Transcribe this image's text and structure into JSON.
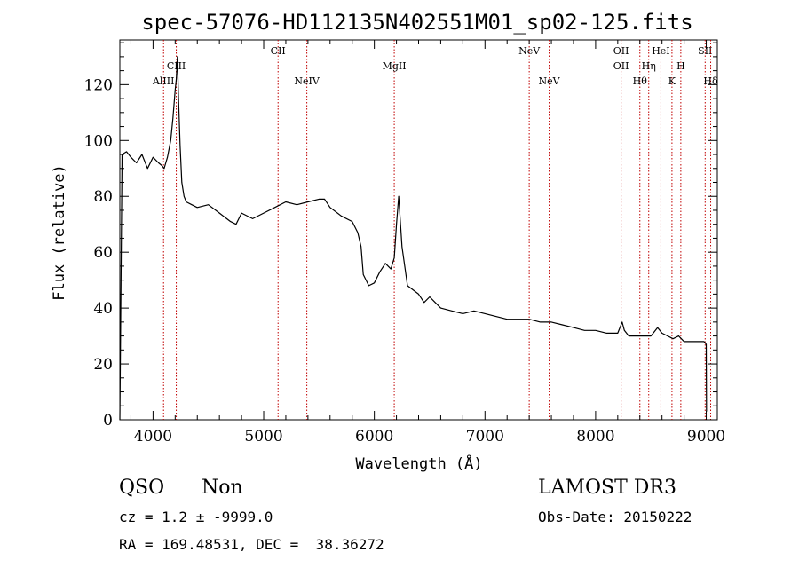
{
  "chart_data": {
    "type": "line",
    "title": "spec-57076-HD112135N402551M01_sp02-125.fits",
    "xlabel": "Wavelength (Å)",
    "ylabel": "Flux (relative)",
    "xlim": [
      3700,
      9100
    ],
    "ylim": [
      0,
      136
    ],
    "xticks": [
      4000,
      5000,
      6000,
      7000,
      8000,
      9000
    ],
    "yticks": [
      0,
      20,
      40,
      60,
      80,
      100,
      120
    ],
    "series": [
      {
        "name": "flux",
        "x": [
          3700,
          3720,
          3760,
          3800,
          3850,
          3900,
          3950,
          4000,
          4050,
          4080,
          4100,
          4130,
          4160,
          4180,
          4200,
          4210,
          4220,
          4230,
          4245,
          4260,
          4280,
          4300,
          4350,
          4400,
          4500,
          4600,
          4700,
          4750,
          4800,
          4900,
          5000,
          5100,
          5200,
          5300,
          5400,
          5500,
          5550,
          5600,
          5700,
          5800,
          5850,
          5880,
          5900,
          5950,
          6000,
          6050,
          6100,
          6150,
          6180,
          6200,
          6220,
          6250,
          6300,
          6400,
          6450,
          6500,
          6550,
          6600,
          6700,
          6800,
          6900,
          7000,
          7100,
          7200,
          7300,
          7400,
          7500,
          7600,
          7700,
          7800,
          7900,
          8000,
          8100,
          8200,
          8240,
          8260,
          8300,
          8400,
          8500,
          8560,
          8600,
          8700,
          8750,
          8800,
          8900,
          8980,
          9000,
          9002
        ],
        "y": [
          0,
          95,
          96,
          94,
          92,
          95,
          90,
          94,
          92,
          91,
          90,
          94,
          100,
          108,
          118,
          122,
          130,
          115,
          98,
          85,
          80,
          78,
          77,
          76,
          77,
          74,
          71,
          70,
          74,
          72,
          74,
          76,
          78,
          77,
          78,
          79,
          79,
          76,
          73,
          71,
          67,
          62,
          52,
          48,
          49,
          53,
          56,
          54,
          58,
          70,
          80,
          62,
          48,
          45,
          42,
          44,
          42,
          40,
          39,
          38,
          39,
          38,
          37,
          36,
          36,
          36,
          35,
          35,
          34,
          33,
          32,
          32,
          31,
          31,
          35,
          32,
          30,
          30,
          30,
          33,
          31,
          29,
          30,
          28,
          28,
          28,
          27,
          3
        ]
      }
    ],
    "lines": [
      {
        "name": "AlIII",
        "wavelength": 4095,
        "row": 3
      },
      {
        "name": "CIII",
        "wavelength": 4210,
        "row": 2
      },
      {
        "name": "CII",
        "wavelength": 5130,
        "row": 1
      },
      {
        "name": "NeIV",
        "wavelength": 5390,
        "row": 3
      },
      {
        "name": "MgII",
        "wavelength": 6180,
        "row": 2
      },
      {
        "name": "NeV",
        "wavelength": 7400,
        "row": 1
      },
      {
        "name": "NeV",
        "wavelength": 7580,
        "row": 3
      },
      {
        "name": "OII",
        "wavelength": 8230,
        "row": 1
      },
      {
        "name": "OII",
        "wavelength": 8230,
        "row": 2
      },
      {
        "name": "Hθ",
        "wavelength": 8400,
        "row": 3
      },
      {
        "name": "Hη",
        "wavelength": 8480,
        "row": 2
      },
      {
        "name": "HeI",
        "wavelength": 8590,
        "row": 1
      },
      {
        "name": "H",
        "wavelength": 8770,
        "row": 2
      },
      {
        "name": "K",
        "wavelength": 8690,
        "row": 3
      },
      {
        "name": "SII",
        "wavelength": 8990,
        "row": 1
      },
      {
        "name": "Hδ",
        "wavelength": 9040,
        "row": 3
      }
    ]
  },
  "footer": {
    "object_class": "QSO",
    "subclass": "Non",
    "survey": "LAMOST DR3",
    "cz": "cz = 1.2 ± -9999.0",
    "obs_date": "Obs-Date: 20150222",
    "coords": "RA = 169.48531, DEC =  38.36272"
  }
}
